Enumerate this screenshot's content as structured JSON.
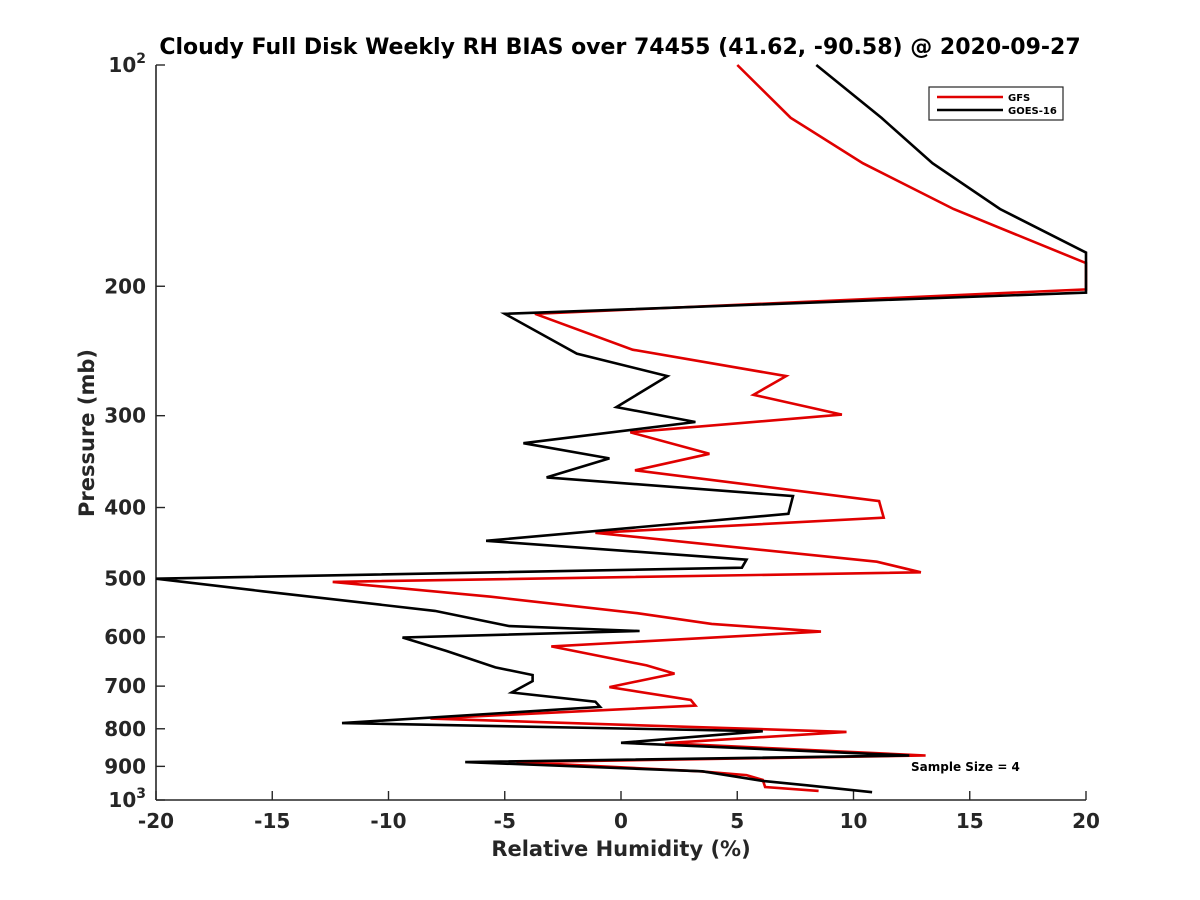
{
  "chart_data": {
    "type": "line",
    "title": "Cloudy Full Disk Weekly RH BIAS over 74455 (41.62, -90.58) @ 2020-09-27",
    "xlabel": "Relative Humidity (%)",
    "ylabel": "Pressure (mb)",
    "xlim": [
      -20,
      20
    ],
    "ylim": [
      100,
      1000
    ],
    "yscale": "log",
    "y_reversed": true,
    "grid": false,
    "legend_position": "top-right",
    "annotation": "Sample Size = 4",
    "x_ticks": [
      "-20",
      "-15",
      "-10",
      "-5",
      "0",
      "5",
      "10",
      "15",
      "20"
    ],
    "y_ticks": [
      {
        "base": "10",
        "exp": "2"
      },
      {
        "base": "200",
        "exp": ""
      },
      {
        "base": "300",
        "exp": ""
      },
      {
        "base": "400",
        "exp": ""
      },
      {
        "base": "500",
        "exp": ""
      },
      {
        "base": "600",
        "exp": ""
      },
      {
        "base": "700",
        "exp": ""
      },
      {
        "base": "800",
        "exp": ""
      },
      {
        "base": "900",
        "exp": ""
      },
      {
        "base": "10",
        "exp": "3"
      }
    ],
    "series": [
      {
        "name": "GFS",
        "color": "#e00000",
        "points": [
          [
            5.0,
            100
          ],
          [
            7.3,
            118
          ],
          [
            10.4,
            136
          ],
          [
            14.3,
            157
          ],
          [
            20.0,
            186
          ],
          [
            20.0,
            202
          ],
          [
            -3.7,
            218
          ],
          [
            0.5,
            244
          ],
          [
            7.1,
            265
          ],
          [
            5.7,
            281
          ],
          [
            9.5,
            299
          ],
          [
            0.4,
            316
          ],
          [
            3.8,
            338
          ],
          [
            0.6,
            356
          ],
          [
            11.1,
            392
          ],
          [
            11.3,
            413
          ],
          [
            -1.1,
            433
          ],
          [
            11.0,
            474
          ],
          [
            12.9,
            490
          ],
          [
            -12.4,
            505
          ],
          [
            -5.6,
            529
          ],
          [
            0.7,
            557
          ],
          [
            3.9,
            576
          ],
          [
            8.6,
            590
          ],
          [
            -3.0,
            618
          ],
          [
            1.1,
            656
          ],
          [
            2.3,
            673
          ],
          [
            -0.5,
            702
          ],
          [
            3.0,
            731
          ],
          [
            3.2,
            744
          ],
          [
            -8.2,
            775
          ],
          [
            9.7,
            808
          ],
          [
            1.9,
            837
          ],
          [
            13.1,
            870
          ],
          [
            -4.5,
            888
          ],
          [
            3.4,
            914
          ],
          [
            5.4,
            925
          ],
          [
            6.1,
            939
          ],
          [
            6.2,
            960
          ],
          [
            8.5,
            972
          ]
        ]
      },
      {
        "name": "GOES-16",
        "color": "#000000",
        "points": [
          [
            8.4,
            100
          ],
          [
            11.2,
            118
          ],
          [
            13.4,
            136
          ],
          [
            16.3,
            157
          ],
          [
            20.0,
            180
          ],
          [
            20.0,
            204
          ],
          [
            -5.0,
            218
          ],
          [
            -1.9,
            247
          ],
          [
            2.0,
            265
          ],
          [
            -0.2,
            292
          ],
          [
            3.2,
            306
          ],
          [
            -4.2,
            327
          ],
          [
            -0.5,
            343
          ],
          [
            -3.2,
            364
          ],
          [
            7.4,
            386
          ],
          [
            7.2,
            408
          ],
          [
            -5.8,
            444
          ],
          [
            5.4,
            471
          ],
          [
            5.2,
            483
          ],
          [
            -20.0,
            500
          ],
          [
            -15.4,
            520
          ],
          [
            -8.0,
            553
          ],
          [
            -4.8,
            580
          ],
          [
            0.8,
            589
          ],
          [
            -9.4,
            601
          ],
          [
            -7.5,
            627
          ],
          [
            -5.4,
            660
          ],
          [
            -3.8,
            676
          ],
          [
            -3.8,
            689
          ],
          [
            -4.7,
            714
          ],
          [
            -1.1,
            735
          ],
          [
            -0.9,
            747
          ],
          [
            -12.0,
            786
          ],
          [
            6.1,
            806
          ],
          [
            0.0,
            836
          ],
          [
            12.4,
            870
          ],
          [
            -6.7,
            888
          ],
          [
            3.5,
            914
          ],
          [
            6.1,
            942
          ],
          [
            8.0,
            955
          ],
          [
            10.8,
            976
          ]
        ]
      }
    ]
  }
}
